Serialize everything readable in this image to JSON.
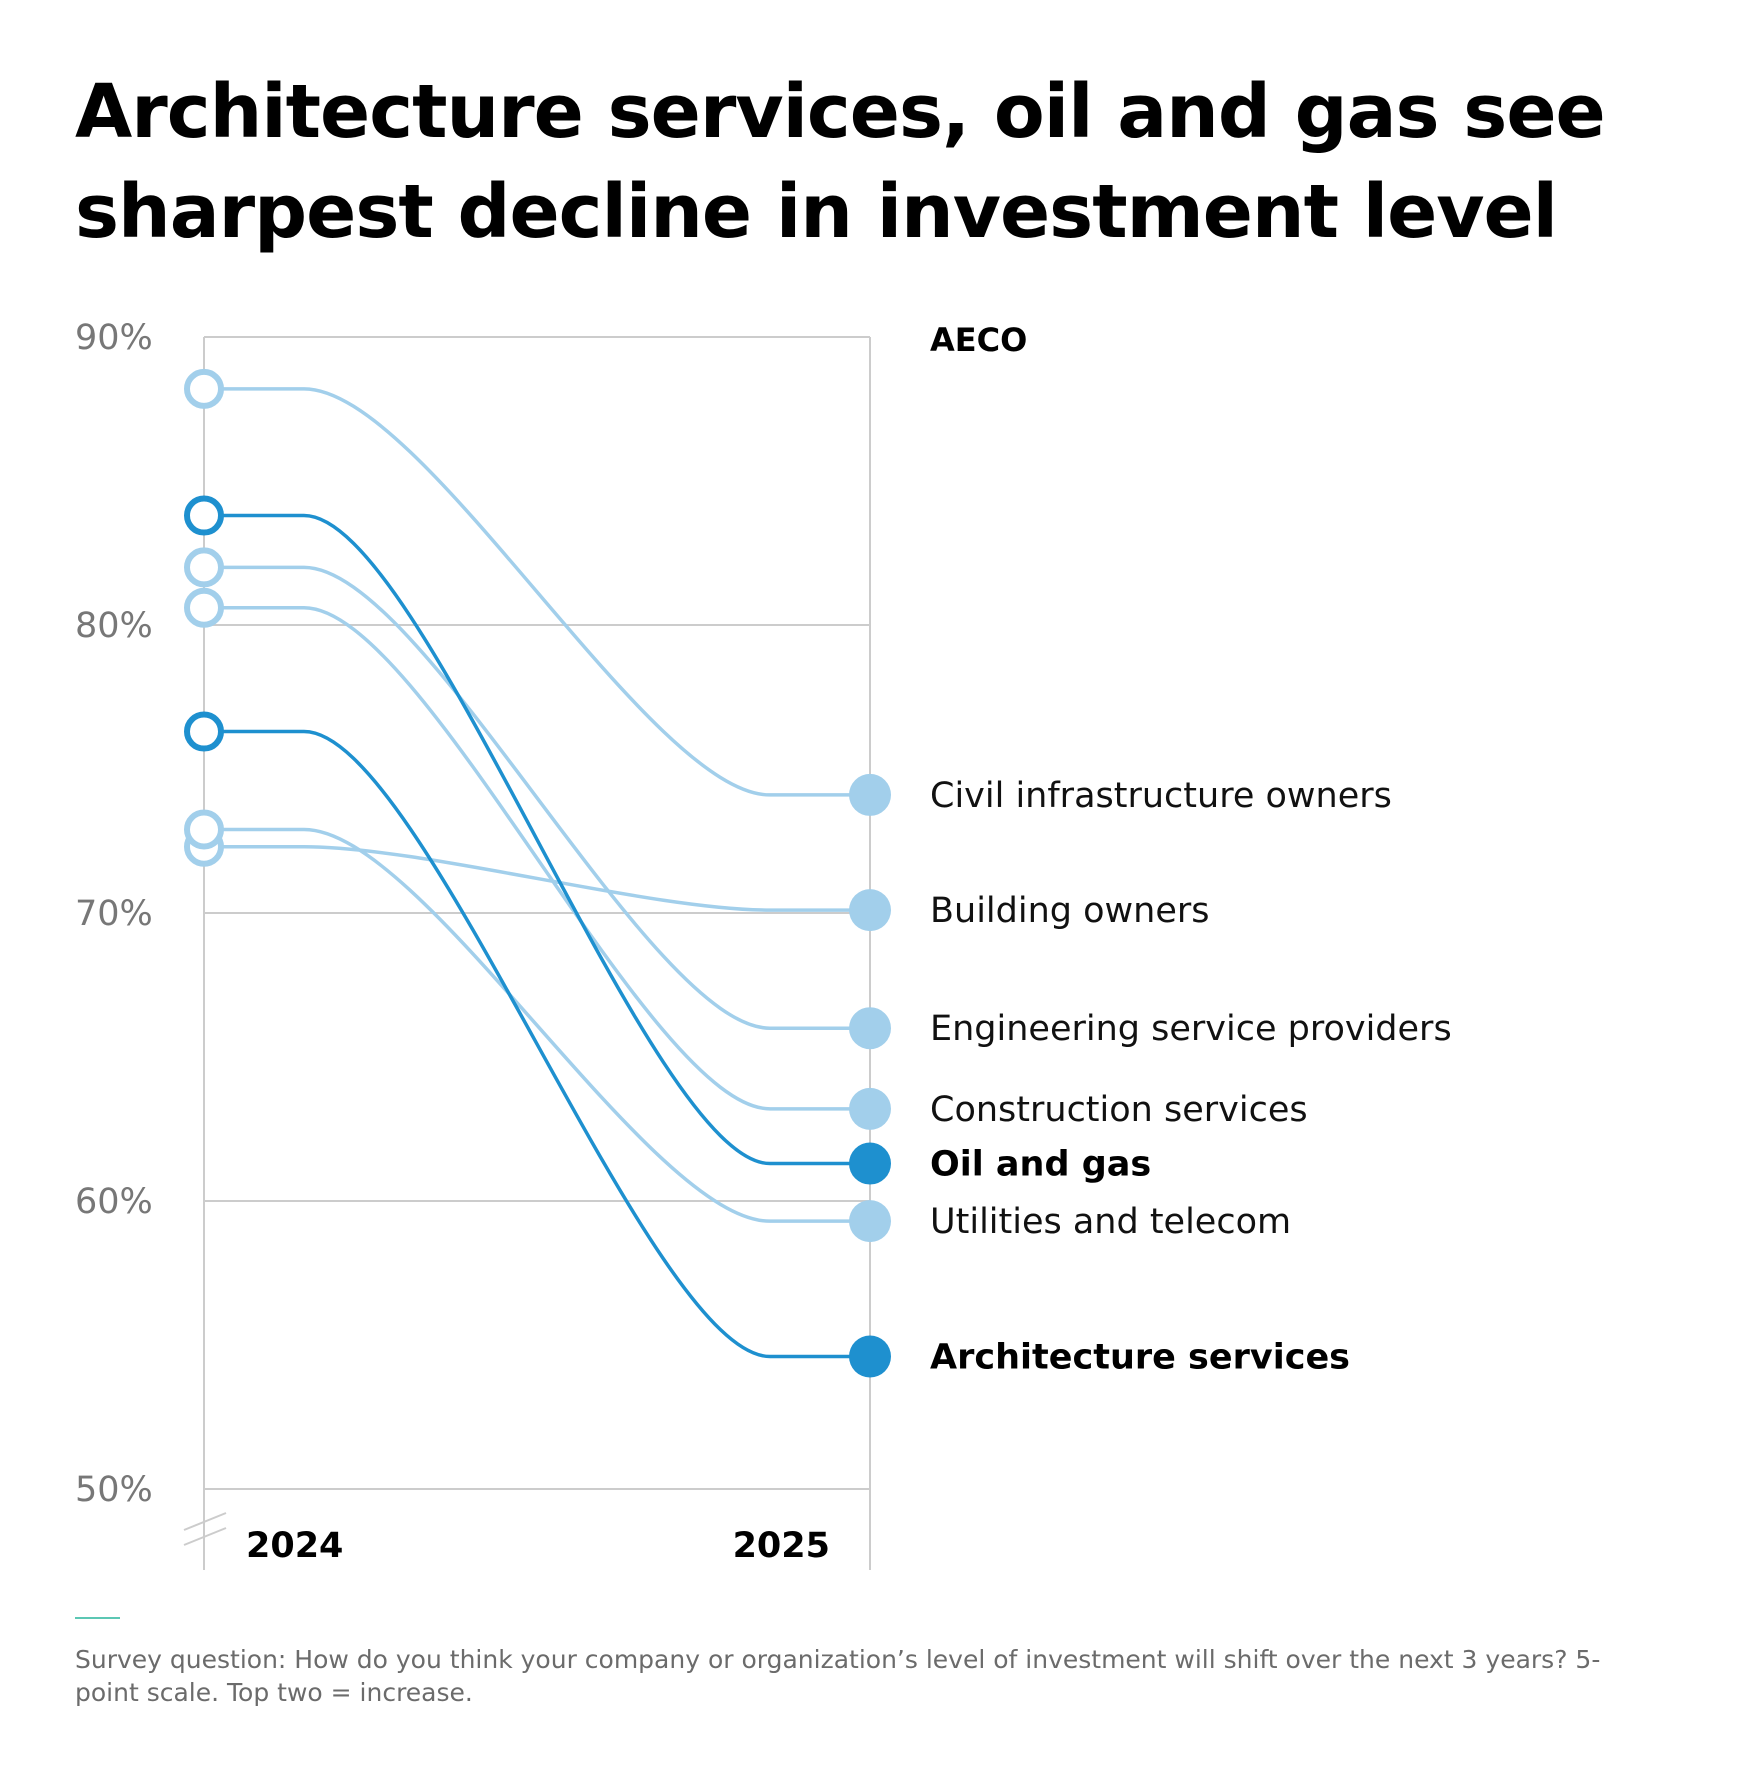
{
  "title": "Architecture services, oil and gas see sharpest decline in investment level",
  "note": "Survey question: How do you think your company or organization’s level of investment will shift over the next 3 years? 5-point scale. Top two = increase.",
  "colors": {
    "highlight": "#1e90cf",
    "muted": "#a2cfeb",
    "grid": "#cccccc",
    "accent_rule": "#5cc7b4"
  },
  "chart_data": {
    "type": "line",
    "chart_style": "slope",
    "group_label": "AECO",
    "x": [
      "2024",
      "2025"
    ],
    "ylim": [
      50,
      90
    ],
    "yticks": [
      90,
      80,
      70,
      60,
      50
    ],
    "ytick_labels": [
      "90%",
      "80%",
      "70%",
      "60%",
      "50%"
    ],
    "axis_break": true,
    "grid": true,
    "series": [
      {
        "name": "Civil infrastructure owners",
        "values": [
          88.2,
          74.1
        ],
        "highlight": false
      },
      {
        "name": "Building owners",
        "values": [
          72.3,
          70.1
        ],
        "highlight": false
      },
      {
        "name": "Engineering service providers",
        "values": [
          82.0,
          66.0
        ],
        "highlight": false
      },
      {
        "name": "Construction services",
        "values": [
          80.6,
          63.2
        ],
        "highlight": false
      },
      {
        "name": "Oil and gas",
        "values": [
          83.8,
          61.3
        ],
        "highlight": true
      },
      {
        "name": "Utilities and telecom",
        "values": [
          72.9,
          59.3
        ],
        "highlight": false
      },
      {
        "name": "Architecture services",
        "values": [
          76.3,
          54.6
        ],
        "highlight": true
      }
    ]
  }
}
